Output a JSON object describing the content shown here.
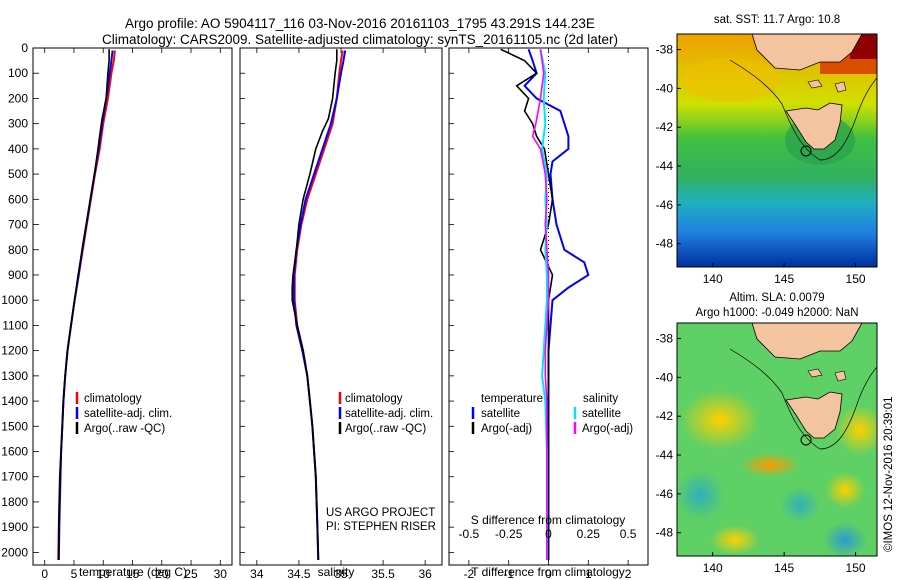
{
  "title_line1": "Argo profile: AO 5904117_116 03-Nov-2016 20161103_1795 43.291S 144.23E",
  "title_line2": "Climatology: CARS2009. Satellite-adjusted climatology: synTS_20161105.nc (2d later)",
  "credit": "US ARGO PROJECT",
  "pi": "PI: STEPHEN RISER",
  "stamp": "©IMOS 12-Nov-2016 20:39:01",
  "colors": {
    "climatology": "#ff0000",
    "satellite": "#0000ff",
    "argo": "#000000",
    "sal_satellite": "#00e5ff",
    "sal_argo": "#ff00ff"
  },
  "chart_data": [
    {
      "type": "line",
      "xlabel": "temperature (deg C)",
      "xlim": [
        -2,
        32
      ],
      "xticks": [
        0,
        5,
        10,
        15,
        20,
        25,
        30
      ],
      "ylim": [
        2050,
        0
      ],
      "yticks": [
        0,
        100,
        200,
        300,
        400,
        500,
        600,
        700,
        800,
        900,
        1000,
        1100,
        1200,
        1300,
        1400,
        1500,
        1600,
        1700,
        1800,
        1900,
        2000
      ],
      "legend": [
        "climatology",
        "satellite-adj. clim.",
        "Argo(..raw -QC)"
      ],
      "series": [
        {
          "name": "climatology",
          "pressure": [
            10,
            50,
            100,
            200,
            300,
            400,
            500,
            600,
            700,
            800,
            900,
            1000,
            1100,
            1200,
            1300,
            1400,
            1500,
            1600,
            1700,
            1800,
            1900,
            2030
          ],
          "values": [
            12.0,
            11.8,
            11.4,
            10.8,
            10.0,
            9.4,
            8.6,
            7.9,
            7.2,
            6.5,
            5.8,
            5.1,
            4.5,
            3.9,
            3.5,
            3.2,
            3.0,
            2.8,
            2.6,
            2.5,
            2.4,
            2.3
          ]
        },
        {
          "name": "satellite-adj. clim.",
          "pressure": [
            10,
            50,
            100,
            200,
            300,
            400,
            500,
            600,
            700,
            800,
            900,
            1000,
            1100,
            1200,
            1300,
            1400,
            1500,
            1600,
            1700,
            1800,
            1900,
            2030
          ],
          "values": [
            11.6,
            11.4,
            11.1,
            10.5,
            9.8,
            9.2,
            8.5,
            7.8,
            7.1,
            6.4,
            5.8,
            5.1,
            4.5,
            3.9,
            3.5,
            3.2,
            3.0,
            2.8,
            2.7,
            2.6,
            2.5,
            2.4
          ]
        },
        {
          "name": "Argo(..raw -QC)",
          "pressure": [
            5,
            50,
            100,
            200,
            280,
            330,
            400,
            500,
            600,
            700,
            800,
            900,
            1000,
            1100,
            1200,
            1300,
            1400,
            1500,
            1600,
            1700,
            1800,
            1900,
            2030
          ],
          "values": [
            11.0,
            11.0,
            10.8,
            10.5,
            9.8,
            9.5,
            9.1,
            8.5,
            7.8,
            7.1,
            6.4,
            5.7,
            5.1,
            4.5,
            3.9,
            3.5,
            3.2,
            3.0,
            2.8,
            2.6,
            2.5,
            2.4,
            2.4
          ]
        }
      ]
    },
    {
      "type": "line",
      "xlabel": "salinity",
      "xlim": [
        33.8,
        36.2
      ],
      "xticks": [
        34,
        34.5,
        35,
        35.5,
        36
      ],
      "ylim": [
        2050,
        0
      ],
      "legend": [
        "climatology",
        "satellite-adj. clim.",
        "Argo(..raw -QC)"
      ],
      "series": [
        {
          "name": "climatology",
          "pressure": [
            10,
            50,
            100,
            200,
            300,
            400,
            500,
            600,
            700,
            800,
            900,
            1000,
            1100,
            1200,
            1300,
            1400,
            1500,
            1600,
            1700,
            1800,
            1900,
            2030
          ],
          "values": [
            35.02,
            35.0,
            34.98,
            34.95,
            34.9,
            34.8,
            34.7,
            34.6,
            34.53,
            34.48,
            34.45,
            34.45,
            34.48,
            34.55,
            34.6,
            34.63,
            34.66,
            34.68,
            34.7,
            34.71,
            34.72,
            34.73
          ]
        },
        {
          "name": "satellite-adj. clim.",
          "pressure": [
            10,
            50,
            100,
            200,
            300,
            400,
            500,
            600,
            700,
            800,
            900,
            1000,
            1100,
            1200,
            1300,
            1400,
            1500,
            1600,
            1700,
            1800,
            1900,
            2030
          ],
          "values": [
            35.05,
            35.03,
            35.0,
            34.95,
            34.88,
            34.78,
            34.68,
            34.58,
            34.52,
            34.47,
            34.44,
            34.44,
            34.47,
            34.54,
            34.6,
            34.63,
            34.66,
            34.68,
            34.7,
            34.71,
            34.72,
            34.73
          ]
        },
        {
          "name": "Argo(..raw -QC)",
          "pressure": [
            5,
            50,
            100,
            200,
            280,
            330,
            400,
            500,
            600,
            700,
            800,
            900,
            950,
            1000,
            1100,
            1200,
            1300,
            1400,
            1500,
            1600,
            1700,
            1800,
            1900,
            2030
          ],
          "values": [
            34.95,
            34.95,
            34.93,
            34.9,
            34.85,
            34.78,
            34.7,
            34.63,
            34.55,
            34.5,
            34.47,
            34.43,
            34.42,
            34.42,
            34.48,
            34.55,
            34.6,
            34.63,
            34.66,
            34.68,
            34.7,
            34.71,
            34.72,
            34.73
          ]
        }
      ]
    },
    {
      "type": "line",
      "xlabel": "T difference from climatology",
      "xlabel2": "S difference from climatology",
      "xlim": [
        -2.5,
        2.5
      ],
      "xticks": [
        -2,
        -1,
        0,
        1,
        2
      ],
      "xticks2_labels": [
        "-0.5",
        "-0.25",
        "0",
        "0.25",
        "0.5"
      ],
      "ylim": [
        2050,
        0
      ],
      "legend_temperature_title": "temperature",
      "legend_salinity_title": "salinity",
      "legend": [
        "satellite",
        "Argo(-adj)",
        "satellite",
        "Argo(-adj)"
      ],
      "series": [
        {
          "name": "satellite",
          "group": "temperature",
          "pressure": [
            5,
            50,
            100,
            150,
            200,
            250,
            300,
            350,
            400,
            450,
            500,
            600,
            700,
            800,
            850,
            900,
            950,
            1000,
            1100,
            1200,
            1400,
            1600,
            1800,
            2030
          ],
          "values": [
            -0.5,
            -0.4,
            -0.3,
            -0.6,
            -0.3,
            0.3,
            0.4,
            0.5,
            0.5,
            0.1,
            0.05,
            0.1,
            0.2,
            0.4,
            0.9,
            1.0,
            0.5,
            0.1,
            0.05,
            0.0,
            0.0,
            0.0,
            0.0,
            0.0
          ]
        },
        {
          "name": "Argo(-adj)",
          "group": "temperature",
          "pressure": [
            5,
            50,
            100,
            150,
            200,
            250,
            300,
            350,
            400,
            500,
            600,
            700,
            800,
            900,
            1000,
            1100,
            1200,
            1400,
            1600,
            1800,
            2030
          ],
          "values": [
            -1.2,
            -0.6,
            -0.3,
            -0.8,
            -0.5,
            -0.6,
            -0.4,
            -0.3,
            -0.1,
            0.0,
            0.1,
            0.0,
            -0.2,
            0.1,
            0.0,
            0.0,
            0.0,
            0.0,
            0.0,
            0.0,
            0.0
          ]
        },
        {
          "name": "satellite",
          "group": "salinity",
          "pressure": [
            5,
            100,
            200,
            300,
            400,
            500,
            600,
            700,
            800,
            900,
            1000,
            1100,
            1200,
            1300,
            1400,
            1600,
            1800,
            2030
          ],
          "values": [
            -0.05,
            -0.02,
            -0.03,
            -0.02,
            -0.04,
            -0.01,
            -0.02,
            -0.01,
            -0.02,
            -0.01,
            -0.01,
            -0.02,
            -0.03,
            -0.04,
            -0.02,
            -0.01,
            -0.01,
            -0.01
          ]
        },
        {
          "name": "Argo(-adj)",
          "group": "salinity",
          "pressure": [
            5,
            100,
            200,
            300,
            350,
            400,
            500,
            600,
            700,
            800,
            900,
            1000,
            1100,
            1200,
            1300,
            1400,
            1600,
            1800,
            2030
          ],
          "values": [
            -0.05,
            -0.03,
            -0.05,
            -0.08,
            -0.1,
            -0.05,
            -0.02,
            -0.01,
            -0.02,
            -0.01,
            0.0,
            0.0,
            -0.01,
            -0.02,
            -0.02,
            -0.01,
            -0.01,
            -0.01,
            -0.01
          ]
        }
      ]
    },
    {
      "type": "heatmap",
      "title": "sat. SST: 11.7 Argo: 10.8",
      "xlim": [
        137.5,
        151.5
      ],
      "ylim": [
        -49.2,
        -37.2
      ],
      "xticks": [
        140,
        145,
        150
      ],
      "yticks": [
        -38,
        -40,
        -42,
        -44,
        -46,
        -48
      ],
      "argo_position": {
        "lon": 144.23,
        "lat": -43.291
      }
    },
    {
      "type": "heatmap",
      "title_line1": "Altim. SLA: 0.0079",
      "title_line2": "Argo h1000: -0.049 h2000: NaN",
      "xlim": [
        137.5,
        151.5
      ],
      "ylim": [
        -49.2,
        -37.2
      ],
      "xticks": [
        140,
        145,
        150
      ],
      "yticks": [
        -38,
        -40,
        -42,
        -44,
        -46,
        -48
      ],
      "argo_position": {
        "lon": 144.23,
        "lat": -43.291
      }
    }
  ]
}
